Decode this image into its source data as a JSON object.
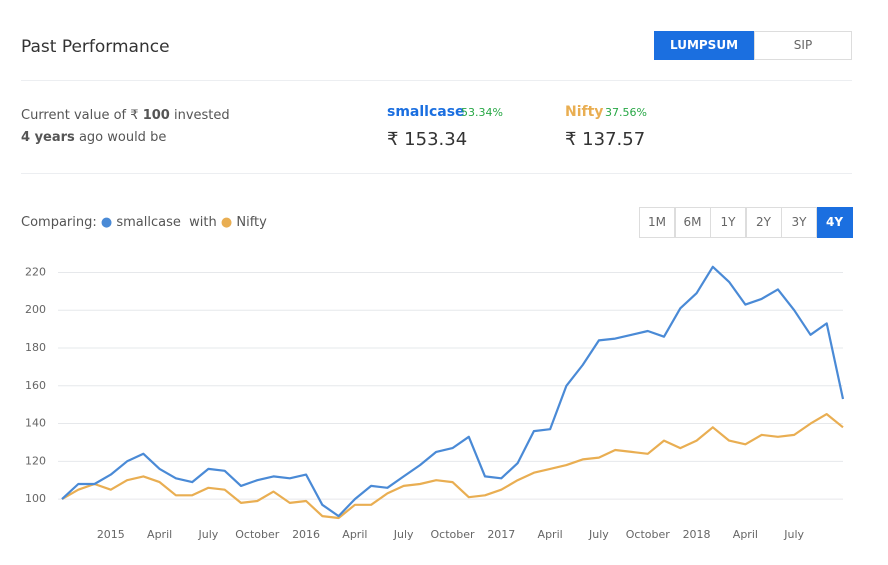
{
  "header": {
    "title": "Past Performance",
    "tabs": [
      "LUMPSUM",
      "SIP"
    ],
    "active_tab": 0
  },
  "summary": {
    "line1_prefix": "Current value of ₹",
    "amount": "100",
    "line1_suffix": "invested",
    "period": "4 years",
    "line2_suffix": "ago would be",
    "items": [
      {
        "name": "smallcase",
        "return": "53.34%",
        "value": "₹ 153.34"
      },
      {
        "name": "Nifty",
        "return": "37.56%",
        "value": "₹ 137.57"
      }
    ]
  },
  "compare": {
    "label": "Comparing:",
    "joiner": "with"
  },
  "periods": {
    "options": [
      "1M",
      "6M",
      "1Y",
      "2Y",
      "3Y",
      "4Y"
    ],
    "active": 5
  },
  "chart_data": {
    "type": "line",
    "categories": [
      null,
      null,
      null,
      "2015",
      null,
      null,
      "April",
      null,
      null,
      "July",
      null,
      null,
      "October",
      null,
      null,
      "2016",
      null,
      null,
      "April",
      null,
      null,
      "July",
      null,
      null,
      "October",
      null,
      null,
      "2017",
      null,
      null,
      "April",
      null,
      null,
      "July",
      null,
      null,
      "October",
      null,
      null,
      "2018",
      null,
      null,
      "April",
      null,
      null,
      "July",
      null,
      null,
      null
    ],
    "series": [
      {
        "name": "smallcase",
        "color": "#4a8ad6",
        "values": [
          100,
          108,
          108,
          113,
          120,
          124,
          116,
          111,
          109,
          116,
          115,
          107,
          110,
          112,
          111,
          113,
          97,
          91,
          100,
          107,
          106,
          112,
          118,
          125,
          127,
          133,
          112,
          111,
          119,
          136,
          137,
          160,
          171,
          184,
          185,
          187,
          189,
          186,
          201,
          209,
          223,
          215,
          203,
          206,
          211,
          200,
          187,
          193,
          153
        ]
      },
      {
        "name": "Nifty",
        "color": "#e9ae52",
        "values": [
          100,
          105,
          108,
          105,
          110,
          112,
          109,
          102,
          102,
          106,
          105,
          98,
          99,
          104,
          98,
          99,
          91,
          90,
          97,
          97,
          103,
          107,
          108,
          110,
          109,
          101,
          102,
          105,
          110,
          114,
          116,
          118,
          121,
          122,
          126,
          125,
          124,
          131,
          127,
          131,
          138,
          131,
          129,
          134,
          133,
          134,
          140,
          145,
          138
        ]
      }
    ],
    "ylim": [
      90,
      225
    ],
    "yticks": [
      100,
      120,
      140,
      160,
      180,
      200,
      220
    ],
    "grid": true
  }
}
